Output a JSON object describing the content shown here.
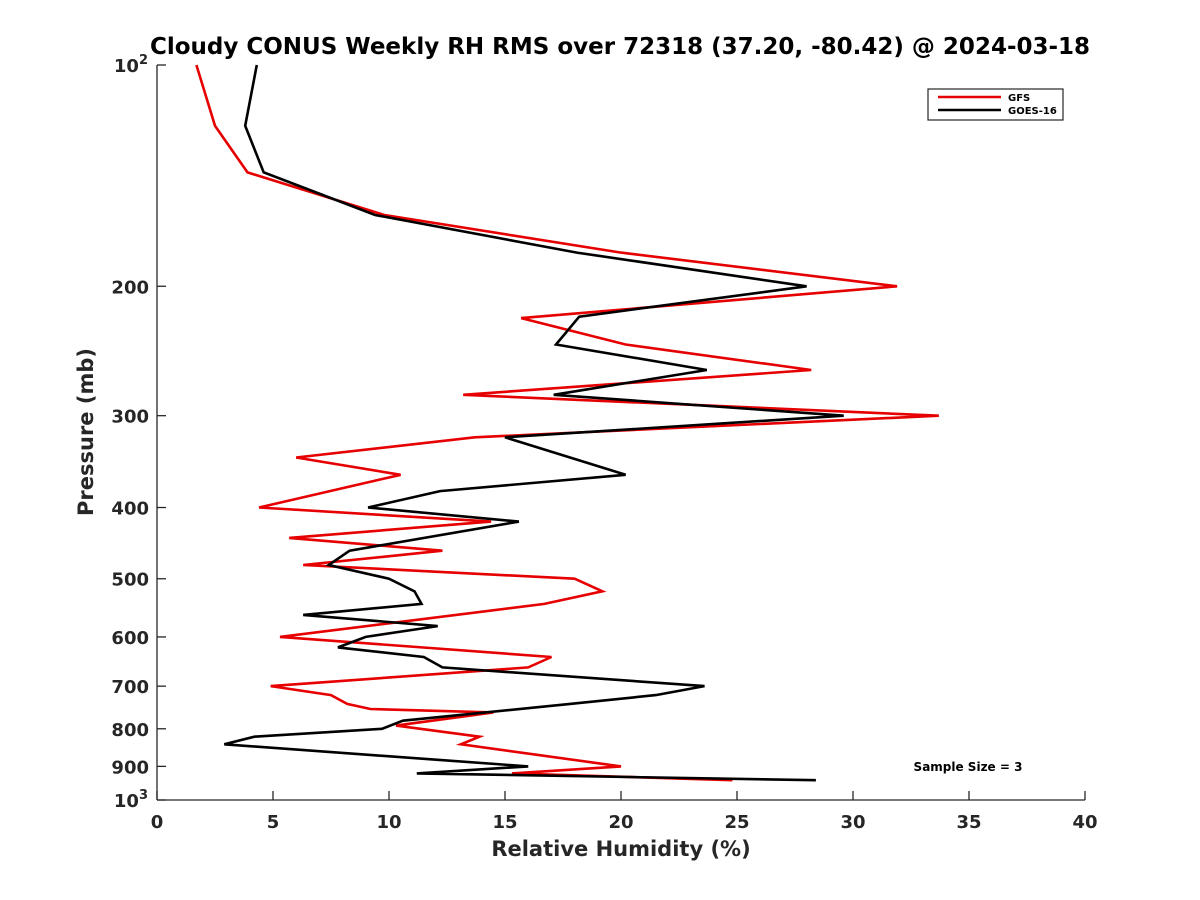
{
  "chart_data": {
    "type": "line",
    "title": "Cloudy CONUS Weekly RH RMS over 72318 (37.20, -80.42) @ 2024-03-18",
    "xlabel": "Relative Humidity (%)",
    "ylabel": "Pressure (mb)",
    "xlim": [
      0,
      40
    ],
    "ylim": [
      100,
      1000
    ],
    "yscale": "log",
    "yreversed": true,
    "grid": false,
    "legend_position": "top-right",
    "x_ticks": [
      0,
      5,
      10,
      15,
      20,
      25,
      30,
      35,
      40
    ],
    "x_tick_labels": [
      "0",
      "5",
      "10",
      "15",
      "20",
      "25",
      "30",
      "35",
      "40"
    ],
    "y_ticks": [
      100,
      200,
      300,
      400,
      500,
      600,
      700,
      800,
      900,
      1000
    ],
    "y_tick_labels": [
      {
        "base": "10",
        "sup": "2"
      },
      {
        "base": "200",
        "sup": ""
      },
      {
        "base": "300",
        "sup": ""
      },
      {
        "base": "400",
        "sup": ""
      },
      {
        "base": "500",
        "sup": ""
      },
      {
        "base": "600",
        "sup": ""
      },
      {
        "base": "700",
        "sup": ""
      },
      {
        "base": "800",
        "sup": ""
      },
      {
        "base": "900",
        "sup": ""
      },
      {
        "base": "10",
        "sup": "3"
      }
    ],
    "series": [
      {
        "name": "GFS",
        "color": "#e60000",
        "rh": [
          1.7,
          2.5,
          3.9,
          9.8,
          20.0,
          31.9,
          15.7,
          20.2,
          28.2,
          13.2,
          33.7,
          13.7,
          6.0,
          10.5,
          4.4,
          14.4,
          5.7,
          12.3,
          6.3,
          18.0,
          19.2,
          16.7,
          5.3,
          17.0,
          16.0,
          4.9,
          7.5,
          8.2,
          9.2,
          14.5,
          10.3,
          13.9,
          13.1,
          20.0,
          15.3,
          24.8
        ],
        "pressure": [
          100,
          121,
          140,
          160,
          180,
          200,
          221,
          240,
          260,
          281,
          300,
          321,
          342,
          361,
          400,
          418,
          440,
          458,
          479,
          500,
          520,
          541,
          600,
          639,
          660,
          700,
          720,
          740,
          752,
          760,
          792,
          820,
          840,
          900,
          920,
          940
        ]
      },
      {
        "name": "GOES-16",
        "color": "#000000",
        "rh": [
          4.3,
          3.8,
          4.6,
          9.4,
          18.1,
          28.0,
          18.2,
          17.2,
          23.7,
          17.1,
          29.6,
          15.0,
          20.2,
          12.2,
          9.1,
          15.6,
          8.3,
          7.4,
          10.0,
          11.1,
          11.4,
          6.3,
          12.1,
          9.0,
          7.8,
          11.5,
          12.3,
          23.6,
          21.5,
          17.8,
          10.6,
          9.7,
          4.2,
          2.9,
          16.0,
          11.2,
          28.4
        ],
        "pressure": [
          100,
          121,
          140,
          160,
          180,
          200,
          220,
          240,
          260,
          281,
          300,
          321,
          361,
          380,
          400,
          418,
          458,
          479,
          500,
          520,
          541,
          560,
          580,
          600,
          620,
          639,
          660,
          700,
          720,
          740,
          780,
          800,
          820,
          840,
          900,
          920,
          940
        ]
      }
    ],
    "annotations": [
      {
        "text": "Sample Size = 3",
        "position": "bottom-right"
      }
    ]
  }
}
